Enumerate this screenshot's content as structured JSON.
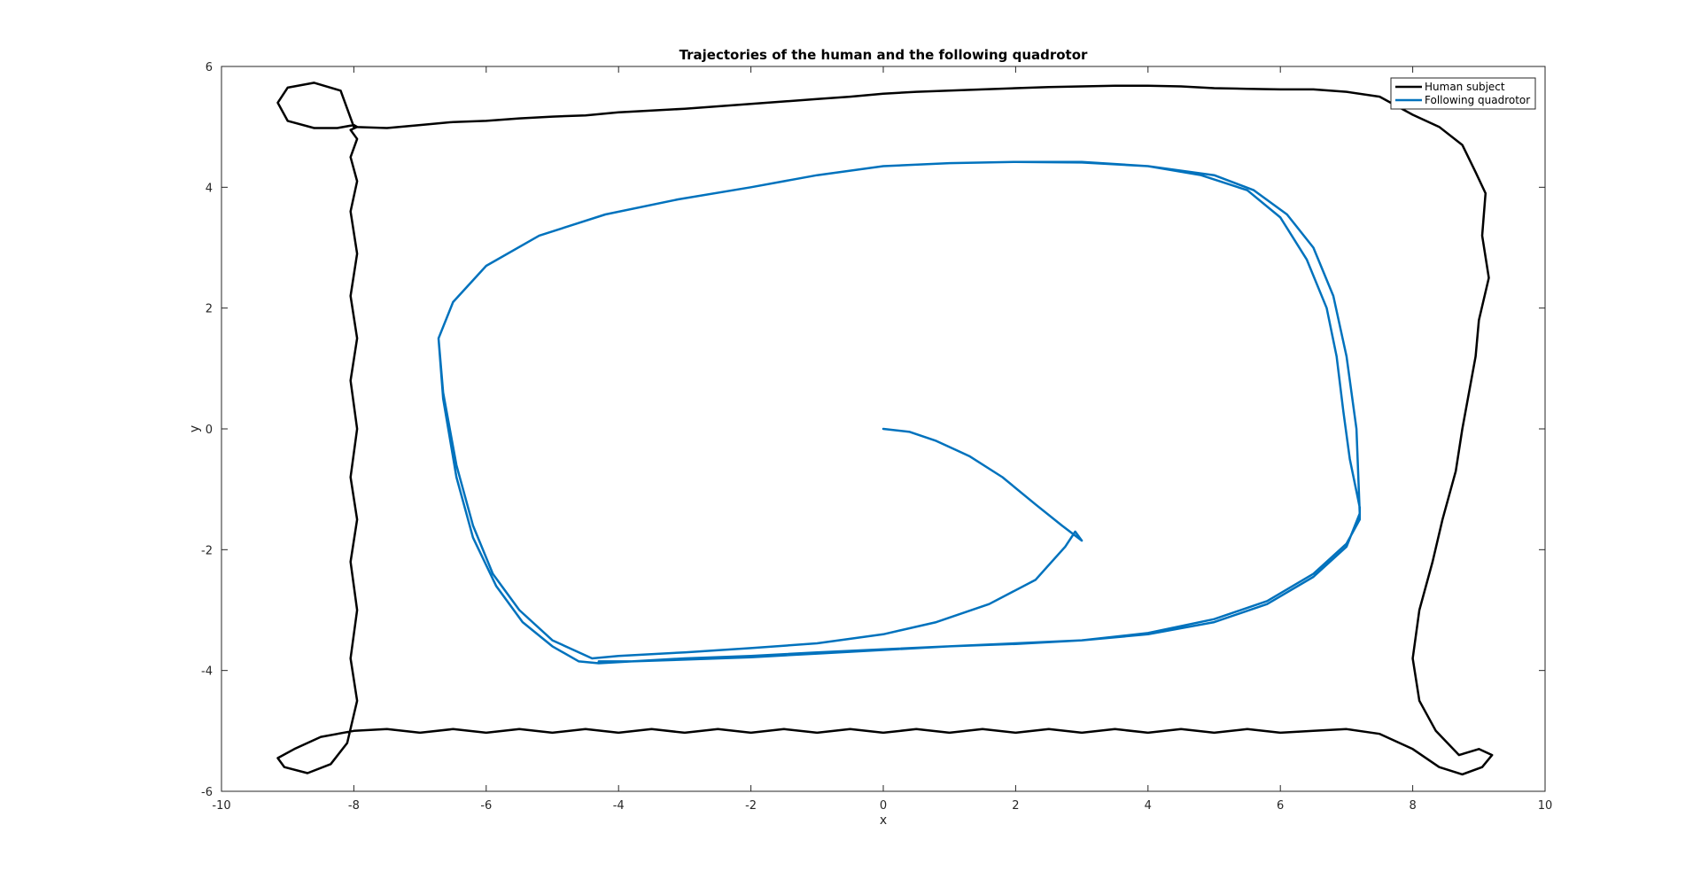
{
  "chart_data": {
    "type": "line",
    "title": "Trajectories of the human and the following quadrotor",
    "xlabel": "x",
    "ylabel": "y",
    "xlim": [
      -10,
      10
    ],
    "ylim": [
      -6,
      6
    ],
    "xticks": [
      -10,
      -8,
      -6,
      -4,
      -2,
      0,
      2,
      4,
      6,
      8,
      10
    ],
    "yticks": [
      -6,
      -4,
      -2,
      0,
      2,
      4,
      6
    ],
    "grid": false,
    "legend_position": "top-right",
    "series": [
      {
        "name": "Human subject",
        "color": "#000000",
        "x": [
          -8.0,
          -7.5,
          -7.0,
          -6.5,
          -6.0,
          -5.5,
          -5.0,
          -4.5,
          -4.0,
          -3.5,
          -3.0,
          -2.5,
          -2.0,
          -1.5,
          -1.0,
          -0.5,
          0.0,
          0.5,
          1.0,
          1.5,
          2.0,
          2.5,
          3.0,
          3.5,
          4.0,
          4.5,
          5.0,
          5.5,
          6.0,
          6.5,
          7.0,
          7.5,
          8.0,
          8.4,
          8.75,
          8.95,
          9.1,
          9.05,
          9.15,
          9.0,
          8.95,
          8.85,
          8.75,
          8.65,
          8.45,
          8.3,
          8.1,
          8.0,
          8.1,
          8.35,
          8.7,
          9.0,
          9.2,
          9.05,
          8.75,
          8.4,
          8.0,
          7.5,
          7.0,
          6.5,
          6.0,
          5.5,
          5.0,
          4.5,
          4.0,
          3.5,
          3.0,
          2.5,
          2.0,
          1.5,
          1.0,
          0.5,
          0.0,
          -0.5,
          -1.0,
          -1.5,
          -2.0,
          -2.5,
          -3.0,
          -3.5,
          -4.0,
          -4.5,
          -5.0,
          -5.5,
          -6.0,
          -6.5,
          -7.0,
          -7.5,
          -8.0,
          -8.5,
          -8.9,
          -9.15,
          -9.05,
          -8.7,
          -8.35,
          -8.1,
          -7.95,
          -8.05,
          -7.95,
          -8.05,
          -7.95,
          -8.05,
          -7.95,
          -8.05,
          -7.95,
          -8.05,
          -7.95,
          -8.05,
          -7.95,
          -8.05,
          -7.95,
          -8.05,
          -7.95,
          -8.0,
          -8.25,
          -8.6,
          -9.0,
          -9.15,
          -9.0,
          -8.6,
          -8.2,
          -8.0
        ],
        "y": [
          5.0,
          4.98,
          5.03,
          5.08,
          5.1,
          5.14,
          5.17,
          5.19,
          5.24,
          5.27,
          5.3,
          5.34,
          5.38,
          5.42,
          5.46,
          5.5,
          5.55,
          5.58,
          5.6,
          5.62,
          5.64,
          5.66,
          5.67,
          5.68,
          5.68,
          5.67,
          5.64,
          5.63,
          5.62,
          5.62,
          5.58,
          5.5,
          5.2,
          5.0,
          4.7,
          4.25,
          3.9,
          3.2,
          2.5,
          1.8,
          1.2,
          0.6,
          0.0,
          -0.7,
          -1.5,
          -2.2,
          -3.0,
          -3.8,
          -4.5,
          -5.0,
          -5.4,
          -5.3,
          -5.4,
          -5.6,
          -5.72,
          -5.6,
          -5.3,
          -5.05,
          -4.97,
          -5.0,
          -5.03,
          -4.97,
          -5.03,
          -4.97,
          -5.03,
          -4.97,
          -5.03,
          -4.97,
          -5.03,
          -4.97,
          -5.03,
          -4.97,
          -5.03,
          -4.97,
          -5.03,
          -4.97,
          -5.03,
          -4.97,
          -5.03,
          -4.97,
          -5.03,
          -4.97,
          -5.03,
          -4.97,
          -5.03,
          -4.97,
          -5.03,
          -4.97,
          -5.0,
          -5.1,
          -5.3,
          -5.45,
          -5.6,
          -5.7,
          -5.55,
          -5.2,
          -4.5,
          -3.8,
          -3.0,
          -2.2,
          -1.5,
          -0.8,
          0.0,
          0.8,
          1.5,
          2.2,
          2.9,
          3.6,
          4.1,
          4.5,
          4.8,
          4.95,
          5.0,
          5.03,
          4.98,
          4.98,
          5.1,
          5.4,
          5.65,
          5.73,
          5.6,
          5.0
        ]
      },
      {
        "name": "Following quadrotor",
        "color": "#0072BD",
        "x": [
          0.0,
          0.4,
          0.8,
          1.3,
          1.8,
          2.3,
          2.7,
          3.0,
          2.9,
          2.75,
          2.3,
          1.6,
          0.8,
          0.0,
          -1.0,
          -2.0,
          -3.0,
          -4.0,
          -4.4,
          -5.0,
          -5.5,
          -5.9,
          -6.2,
          -6.45,
          -6.65,
          -6.72,
          -6.5,
          -6.0,
          -5.2,
          -4.2,
          -3.1,
          -2.0,
          -1.0,
          0.0,
          1.0,
          2.0,
          3.0,
          4.0,
          4.8,
          5.5,
          6.0,
          6.4,
          6.7,
          6.85,
          6.95,
          7.05,
          7.2,
          7.2,
          7.0,
          6.5,
          5.8,
          5.0,
          4.0,
          3.0,
          2.0,
          1.0,
          0.0,
          -1.0,
          -2.0,
          -3.0,
          -3.8,
          -4.3,
          -4.6,
          -5.0,
          -5.45,
          -5.85,
          -6.2,
          -6.45,
          -6.65,
          -6.72,
          -6.5,
          -6.0,
          -5.2,
          -4.2,
          -3.1,
          -2.0,
          -1.0,
          0.0,
          1.0,
          2.0,
          3.0,
          4.0,
          5.0,
          5.6,
          6.1,
          6.5,
          6.8,
          7.0,
          7.15,
          7.2,
          7.0,
          6.5,
          5.8,
          5.0,
          4.0,
          3.0,
          2.0,
          1.0,
          0.0,
          -1.0,
          -2.0,
          -3.0,
          -3.8,
          -4.3
        ],
        "y": [
          0.0,
          -0.05,
          -0.2,
          -0.45,
          -0.8,
          -1.25,
          -1.6,
          -1.85,
          -1.7,
          -1.95,
          -2.5,
          -2.9,
          -3.2,
          -3.4,
          -3.55,
          -3.63,
          -3.7,
          -3.76,
          -3.8,
          -3.5,
          -3.0,
          -2.4,
          -1.6,
          -0.6,
          0.6,
          1.5,
          2.1,
          2.7,
          3.2,
          3.55,
          3.8,
          4.0,
          4.2,
          4.35,
          4.4,
          4.42,
          4.42,
          4.35,
          4.2,
          3.95,
          3.5,
          2.8,
          2.0,
          1.2,
          0.3,
          -0.5,
          -1.3,
          -1.5,
          -1.9,
          -2.4,
          -2.85,
          -3.15,
          -3.38,
          -3.5,
          -3.56,
          -3.6,
          -3.65,
          -3.7,
          -3.76,
          -3.8,
          -3.85,
          -3.88,
          -3.85,
          -3.6,
          -3.2,
          -2.6,
          -1.8,
          -0.8,
          0.5,
          1.5,
          2.1,
          2.7,
          3.2,
          3.55,
          3.8,
          4.0,
          4.2,
          4.35,
          4.4,
          4.42,
          4.41,
          4.35,
          4.2,
          3.95,
          3.55,
          3.0,
          2.2,
          1.2,
          0.0,
          -1.4,
          -1.95,
          -2.45,
          -2.9,
          -3.2,
          -3.4,
          -3.5,
          -3.55,
          -3.6,
          -3.66,
          -3.72,
          -3.78,
          -3.82,
          -3.85,
          -3.85
        ]
      }
    ]
  }
}
